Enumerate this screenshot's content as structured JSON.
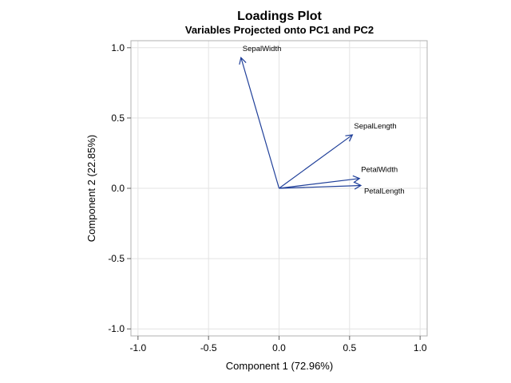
{
  "chart_data": {
    "type": "vector-scatter",
    "title": "Loadings Plot",
    "subtitle": "Variables Projected onto PC1 and PC2",
    "xlabel": "Component 1 (72.96%)",
    "ylabel": "Component 2 (22.85%)",
    "xlim": [
      -1.05,
      1.05
    ],
    "ylim": [
      -1.05,
      1.05
    ],
    "xticks": [
      -1.0,
      -0.5,
      0.0,
      0.5,
      1.0
    ],
    "yticks": [
      -1.0,
      -0.5,
      0.0,
      0.5,
      1.0
    ],
    "xtick_labels": [
      "-1.0",
      "-0.5",
      "0.0",
      "0.5",
      "1.0"
    ],
    "ytick_labels": [
      "-1.0",
      "-0.5",
      "0.0",
      "0.5",
      "1.0"
    ],
    "grid": true,
    "series": [
      {
        "name": "SepalLength",
        "x": 0.52,
        "y": 0.38
      },
      {
        "name": "SepalWidth",
        "x": -0.27,
        "y": 0.93
      },
      {
        "name": "PetalLength",
        "x": 0.58,
        "y": 0.02
      },
      {
        "name": "PetalWidth",
        "x": 0.57,
        "y": 0.07
      }
    ],
    "colors": {
      "vector": "#1f3f99"
    }
  }
}
